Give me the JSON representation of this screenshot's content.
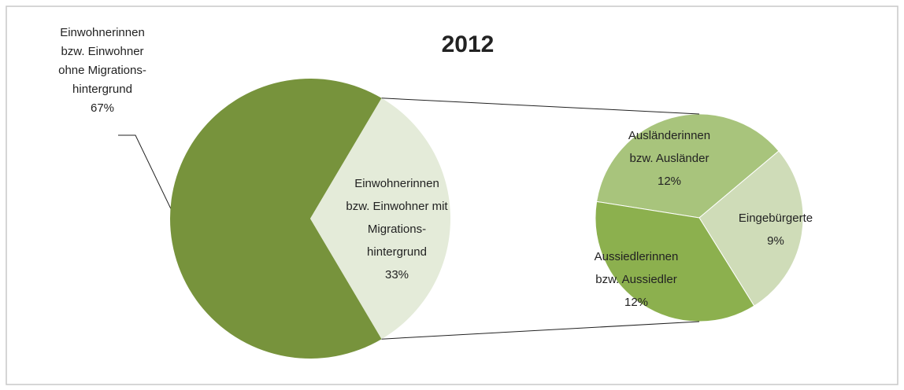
{
  "chart_data": {
    "type": "pie-of-pie",
    "title": "2012",
    "categories": [
      [
        "Einwohnerinnen",
        "bzw. Einwohner",
        "ohne Migrations-",
        "hintergrund"
      ],
      [
        "Einwohnerinnen",
        "bzw. Einwohner mit",
        "Migrations-",
        "hintergrund"
      ]
    ],
    "values": [
      67,
      33
    ],
    "value_labels": [
      "67%",
      "33%"
    ],
    "colors": [
      "#77933c",
      "#e4ebd9"
    ],
    "secondary": {
      "categories": [
        [
          "Ausländerinnen",
          "bzw. Ausländer"
        ],
        [
          "Eingebürgerte"
        ],
        [
          "Aussiedlerinnen",
          "bzw. Aussiedler"
        ]
      ],
      "values": [
        12,
        9,
        12
      ],
      "value_labels": [
        "12%",
        "9%",
        "12%"
      ],
      "colors": [
        "#a8c47c",
        "#cfdcb8",
        "#8cb04e"
      ]
    }
  }
}
